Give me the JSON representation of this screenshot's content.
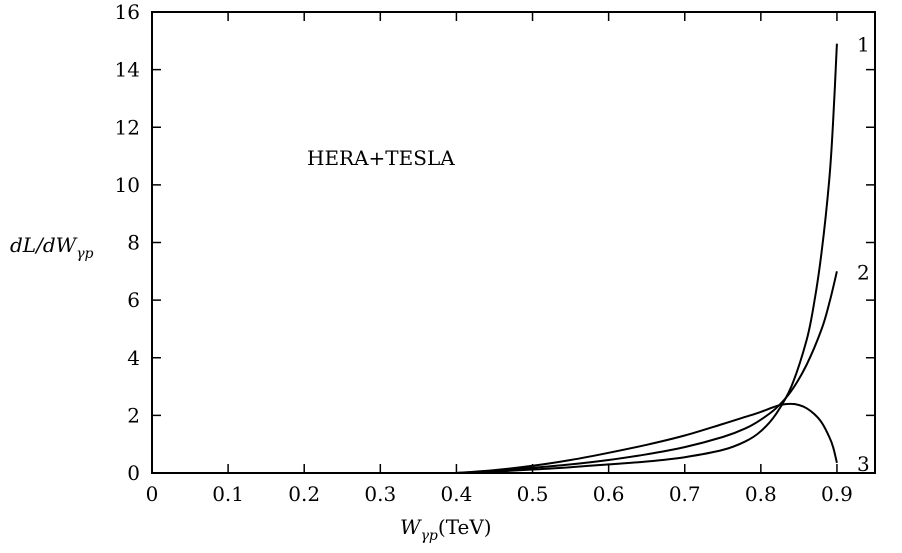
{
  "chart_data": {
    "type": "line",
    "annotation": "HERA+TESLA",
    "xlabel": {
      "main": "W",
      "sub": "γp",
      "unit": "(TeV)"
    },
    "ylabel": {
      "main": "dL/dW",
      "sub": "γp"
    },
    "xlim": [
      0,
      0.95
    ],
    "ylim": [
      0,
      16
    ],
    "xticks": [
      0,
      0.1,
      0.2,
      0.3,
      0.4,
      0.5,
      0.6,
      0.7,
      0.8,
      0.9
    ],
    "yticks": [
      0,
      2,
      4,
      6,
      8,
      10,
      12,
      14,
      16
    ],
    "xtick_labels": [
      "0",
      "0.1",
      "0.2",
      "0.3",
      "0.4",
      "0.5",
      "0.6",
      "0.7",
      "0.8",
      "0.9"
    ],
    "ytick_labels": [
      "0",
      "2",
      "4",
      "6",
      "8",
      "10",
      "12",
      "14",
      "16"
    ],
    "grid": false,
    "legend": "none",
    "series": [
      {
        "name": "1",
        "x": [
          0.4,
          0.45,
          0.5,
          0.55,
          0.6,
          0.65,
          0.7,
          0.75,
          0.78,
          0.8,
          0.82,
          0.84,
          0.86,
          0.87,
          0.88,
          0.89,
          0.895,
          0.9
        ],
        "y": [
          0.0,
          0.05,
          0.12,
          0.2,
          0.3,
          0.4,
          0.55,
          0.8,
          1.1,
          1.45,
          2.05,
          3.0,
          4.6,
          5.9,
          7.7,
          10.2,
          12.2,
          14.9
        ]
      },
      {
        "name": "2",
        "x": [
          0.4,
          0.45,
          0.5,
          0.55,
          0.6,
          0.65,
          0.7,
          0.75,
          0.78,
          0.8,
          0.82,
          0.84,
          0.86,
          0.88,
          0.89,
          0.9
        ],
        "y": [
          0.0,
          0.07,
          0.18,
          0.3,
          0.45,
          0.65,
          0.9,
          1.25,
          1.55,
          1.85,
          2.25,
          2.85,
          3.75,
          5.0,
          5.9,
          7.0
        ]
      },
      {
        "name": "3",
        "x": [
          0.4,
          0.45,
          0.5,
          0.55,
          0.6,
          0.65,
          0.7,
          0.75,
          0.78,
          0.8,
          0.82,
          0.83,
          0.84,
          0.85,
          0.86,
          0.87,
          0.88,
          0.89,
          0.895,
          0.9
        ],
        "y": [
          0.0,
          0.1,
          0.25,
          0.45,
          0.7,
          0.98,
          1.3,
          1.7,
          1.95,
          2.12,
          2.32,
          2.38,
          2.4,
          2.36,
          2.25,
          2.05,
          1.75,
          1.25,
          0.9,
          0.35
        ]
      }
    ]
  }
}
